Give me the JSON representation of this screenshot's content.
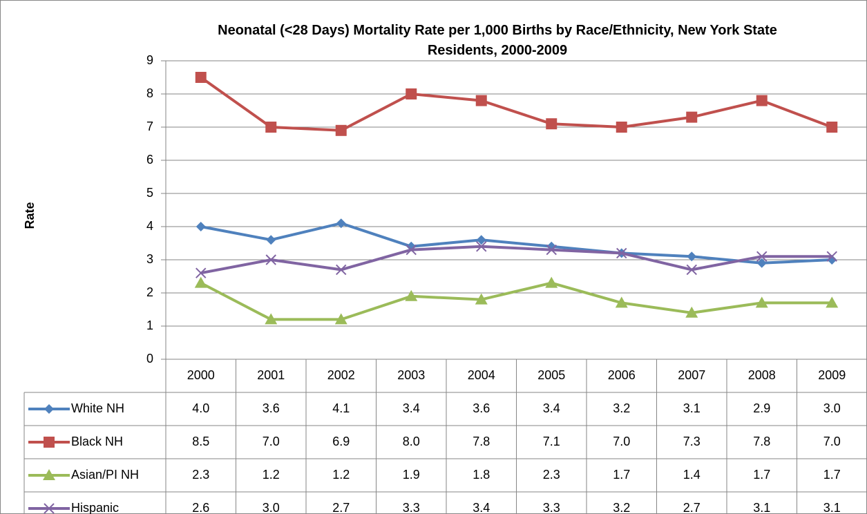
{
  "chart_data": {
    "type": "line",
    "title": "Neonatal (<28 Days) Mortality Rate per 1,000 Births by Race/Ethnicity, New York State Residents, 2000-2009",
    "y_label": "Rate",
    "categories": [
      "2000",
      "2001",
      "2002",
      "2003",
      "2004",
      "2005",
      "2006",
      "2007",
      "2008",
      "2009"
    ],
    "ylim": [
      0,
      9
    ],
    "yticks": [
      0,
      1,
      2,
      3,
      4,
      5,
      6,
      7,
      8,
      9
    ],
    "grid": true,
    "data_table": true,
    "series": [
      {
        "name": "White NH",
        "color": "#4f81bd",
        "marker": "diamond",
        "values": [
          4.0,
          3.6,
          4.1,
          3.4,
          3.6,
          3.4,
          3.2,
          3.1,
          2.9,
          3.0
        ],
        "value_labels": [
          "4.0",
          "3.6",
          "4.1",
          "3.4",
          "3.6",
          "3.4",
          "3.2",
          "3.1",
          "2.9",
          "3.0"
        ]
      },
      {
        "name": "Black NH",
        "color": "#c0504d",
        "marker": "square",
        "values": [
          8.5,
          7.0,
          6.9,
          8.0,
          7.8,
          7.1,
          7.0,
          7.3,
          7.8,
          7.0
        ],
        "value_labels": [
          "8.5",
          "7.0",
          "6.9",
          "8.0",
          "7.8",
          "7.1",
          "7.0",
          "7.3",
          "7.8",
          "7.0"
        ]
      },
      {
        "name": "Asian/PI NH",
        "color": "#9bbb59",
        "marker": "triangle",
        "values": [
          2.3,
          1.2,
          1.2,
          1.9,
          1.8,
          2.3,
          1.7,
          1.4,
          1.7,
          1.7
        ],
        "value_labels": [
          "2.3",
          "1.2",
          "1.2",
          "1.9",
          "1.8",
          "2.3",
          "1.7",
          "1.4",
          "1.7",
          "1.7"
        ]
      },
      {
        "name": "Hispanic",
        "color": "#8064a2",
        "marker": "x",
        "values": [
          2.6,
          3.0,
          2.7,
          3.3,
          3.4,
          3.3,
          3.2,
          2.7,
          3.1,
          3.1
        ],
        "value_labels": [
          "2.6",
          "3.0",
          "2.7",
          "3.3",
          "3.4",
          "3.3",
          "3.2",
          "2.7",
          "3.1",
          "3.1"
        ]
      }
    ]
  }
}
